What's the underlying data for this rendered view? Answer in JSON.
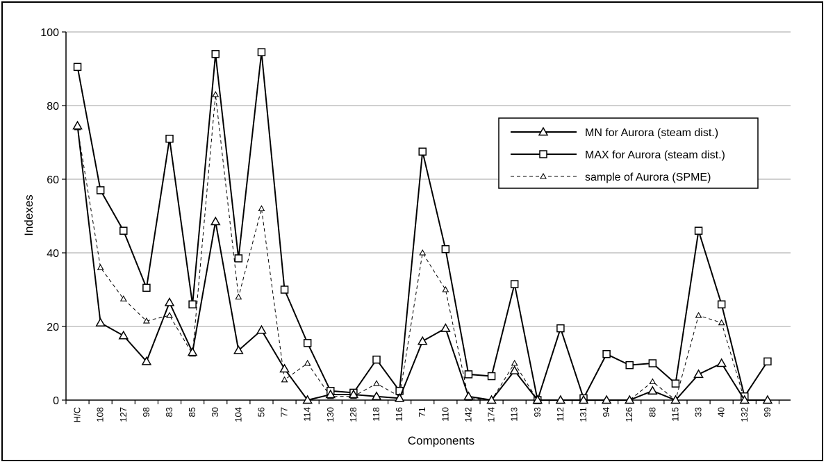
{
  "chart_data": {
    "type": "line",
    "title": "",
    "xlabel": "Components",
    "ylabel": "Indexes",
    "ylim": [
      0,
      100
    ],
    "yticks": [
      0,
      20,
      40,
      60,
      80,
      100
    ],
    "grid": true,
    "legend_position": "right",
    "categories": [
      "H/C",
      "108",
      "127",
      "98",
      "83",
      "85",
      "30",
      "104",
      "56",
      "77",
      "114",
      "130",
      "128",
      "118",
      "116",
      "71",
      "110",
      "142",
      "174",
      "113",
      "93",
      "112",
      "131",
      "94",
      "126",
      "88",
      "115",
      "33",
      "40",
      "132",
      "99"
    ],
    "series": [
      {
        "name": "MN for Aurora (steam dist.)",
        "marker": "triangle",
        "line": "solid",
        "color": "#000000",
        "values": [
          74.5,
          21,
          17.5,
          10.5,
          26.5,
          13,
          48.5,
          13.5,
          19,
          8.5,
          0,
          1.5,
          1.5,
          1,
          0.5,
          16,
          19.5,
          1,
          0,
          8,
          0,
          0,
          0,
          0,
          0,
          2.5,
          0,
          7,
          10,
          0,
          0
        ]
      },
      {
        "name": "MAX for Aurora (steam dist.)",
        "marker": "square",
        "line": "solid",
        "color": "#000000",
        "values": [
          90.5,
          57,
          46,
          30.5,
          71,
          26,
          94,
          38.5,
          94.5,
          30,
          15.5,
          2.5,
          2,
          11,
          2.5,
          67.5,
          41,
          7,
          6.5,
          31.5,
          0,
          19.5,
          0.5,
          12.5,
          9.5,
          10,
          4.5,
          46,
          26,
          1,
          10.5
        ]
      },
      {
        "name": "sample of Aurora (SPME)",
        "marker": "triangle-small",
        "line": "dashed",
        "color": "#000000",
        "values": [
          74,
          36,
          27.5,
          21.5,
          23,
          12.5,
          83,
          28,
          52,
          5.5,
          10,
          1,
          1,
          4.5,
          1,
          40,
          30,
          0.5,
          0,
          10,
          0,
          0,
          0,
          0,
          0,
          5,
          0,
          23,
          21,
          0,
          0
        ]
      }
    ]
  }
}
